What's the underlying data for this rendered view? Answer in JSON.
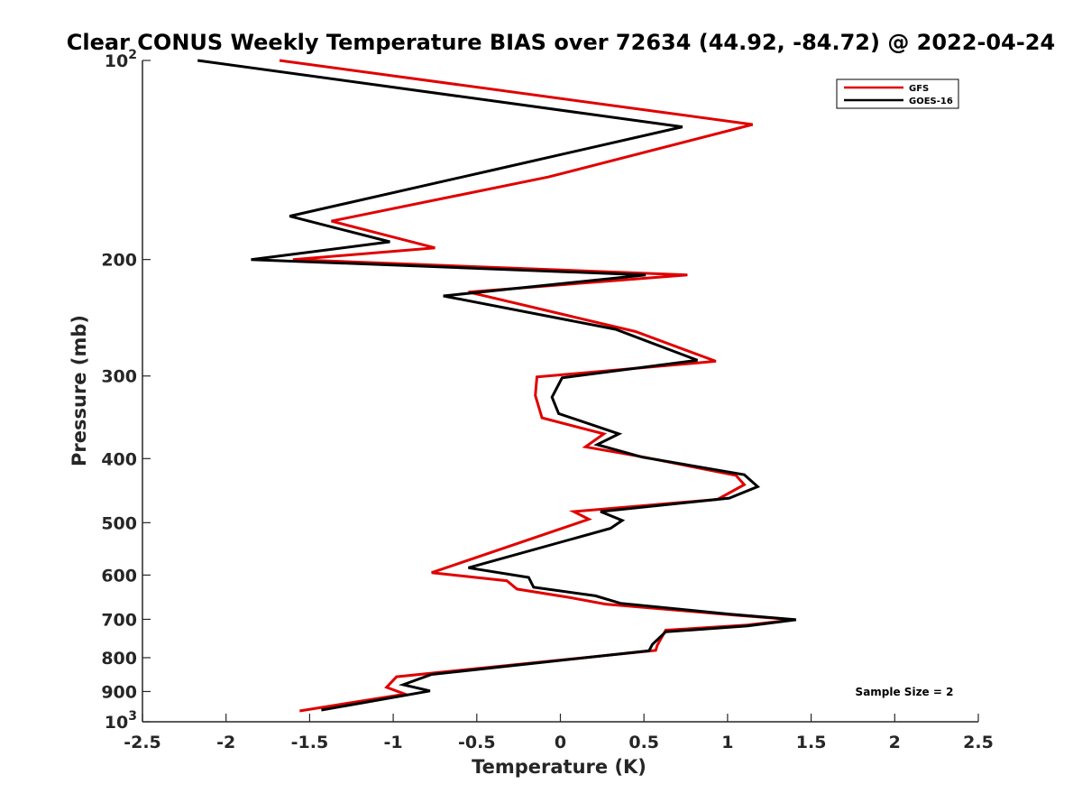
{
  "chart_data": {
    "type": "line",
    "title": "Clear CONUS Weekly Temperature BIAS over 72634 (44.92, -84.72) @ 2022-04-24",
    "xlabel": "Temperature (K)",
    "ylabel": "Pressure (mb)",
    "xlim": [
      -2.5,
      2.5
    ],
    "ylim": [
      100,
      1000
    ],
    "yscale": "log",
    "y_reversed": true,
    "x_ticks": [
      -2.5,
      -2,
      -1.5,
      -1,
      -0.5,
      0,
      0.5,
      1,
      1.5,
      2,
      2.5
    ],
    "x_tick_labels": [
      "-2.5",
      "-2",
      "-1.5",
      "-1",
      "-0.5",
      "0",
      "0.5",
      "1",
      "1.5",
      "2",
      "2.5"
    ],
    "y_ticks": [
      100,
      200,
      300,
      400,
      500,
      600,
      700,
      800,
      900,
      1000
    ],
    "y_tick_labels": [
      {
        "base": "10",
        "exp": "2"
      },
      {
        "base": "200",
        "exp": ""
      },
      {
        "base": "300",
        "exp": ""
      },
      {
        "base": "400",
        "exp": ""
      },
      {
        "base": "500",
        "exp": ""
      },
      {
        "base": "600",
        "exp": ""
      },
      {
        "base": "700",
        "exp": ""
      },
      {
        "base": "800",
        "exp": ""
      },
      {
        "base": "900",
        "exp": ""
      },
      {
        "base": "10",
        "exp": "3"
      }
    ],
    "grid": false,
    "legend_position": "top-right",
    "series": [
      {
        "name": "GFS",
        "color": "#e00000",
        "points": [
          [
            -1.68,
            100
          ],
          [
            1.15,
            125
          ],
          [
            -0.07,
            150
          ],
          [
            -1.37,
            175
          ],
          [
            -0.75,
            192
          ],
          [
            -1.6,
            200
          ],
          [
            0.76,
            211
          ],
          [
            -0.55,
            224
          ],
          [
            0.45,
            257
          ],
          [
            0.93,
            285
          ],
          [
            -0.14,
            301
          ],
          [
            -0.15,
            321
          ],
          [
            -0.11,
            347
          ],
          [
            0.26,
            367
          ],
          [
            0.15,
            384
          ],
          [
            0.5,
            398
          ],
          [
            1.05,
            424
          ],
          [
            1.1,
            438
          ],
          [
            0.94,
            461
          ],
          [
            0.08,
            481
          ],
          [
            0.17,
            494
          ],
          [
            0.01,
            510
          ],
          [
            -0.77,
            595
          ],
          [
            -0.32,
            612
          ],
          [
            -0.26,
            630
          ],
          [
            0.06,
            649
          ],
          [
            0.27,
            664
          ],
          [
            1.05,
            690
          ],
          [
            1.4,
            701
          ],
          [
            1.12,
            714
          ],
          [
            0.63,
            727
          ],
          [
            0.58,
            766
          ],
          [
            0.57,
            780
          ],
          [
            -0.98,
            855
          ],
          [
            -1.04,
            887
          ],
          [
            -0.93,
            908
          ],
          [
            -1.56,
            963
          ]
        ]
      },
      {
        "name": "GOES-16",
        "color": "#000000",
        "points": [
          [
            -2.17,
            100
          ],
          [
            0.73,
            126
          ],
          [
            -0.38,
            146
          ],
          [
            -1.62,
            172
          ],
          [
            -1.02,
            188
          ],
          [
            -1.85,
            200
          ],
          [
            0.51,
            211
          ],
          [
            -0.7,
            227
          ],
          [
            0.33,
            255
          ],
          [
            0.82,
            284
          ],
          [
            0.01,
            302
          ],
          [
            -0.05,
            323
          ],
          [
            -0.01,
            342
          ],
          [
            0.35,
            367
          ],
          [
            0.22,
            381
          ],
          [
            0.49,
            398
          ],
          [
            1.1,
            423
          ],
          [
            1.18,
            441
          ],
          [
            1.01,
            459
          ],
          [
            0.24,
            481
          ],
          [
            0.37,
            496
          ],
          [
            0.3,
            510
          ],
          [
            -0.55,
            585
          ],
          [
            -0.19,
            605
          ],
          [
            -0.16,
            626
          ],
          [
            0.21,
            645
          ],
          [
            0.36,
            662
          ],
          [
            1.0,
            687
          ],
          [
            1.41,
            701
          ],
          [
            1.12,
            716
          ],
          [
            0.63,
            731
          ],
          [
            0.55,
            764
          ],
          [
            0.53,
            781
          ],
          [
            -0.77,
            848
          ],
          [
            -0.94,
            879
          ],
          [
            -0.78,
            898
          ],
          [
            -1.43,
            960
          ]
        ]
      }
    ],
    "annotations": [
      "Sample Size = 2"
    ]
  }
}
